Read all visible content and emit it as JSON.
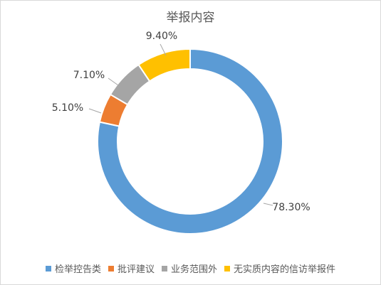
{
  "chart_data": {
    "type": "pie",
    "variant": "donut",
    "title": "举报内容",
    "legend_position": "bottom",
    "series": [
      {
        "name": "检举控告类",
        "value": 78.3,
        "label": "78.30%",
        "color": "#5b9bd5"
      },
      {
        "name": "批评建议",
        "value": 5.1,
        "label": "5.10%",
        "color": "#ed7d31"
      },
      {
        "name": "业务范围外",
        "value": 7.1,
        "label": "7.10%",
        "color": "#a5a5a5"
      },
      {
        "name": "无实质内容的信访举报件",
        "value": 9.4,
        "label": "9.40%",
        "color": "#ffc000"
      }
    ]
  }
}
